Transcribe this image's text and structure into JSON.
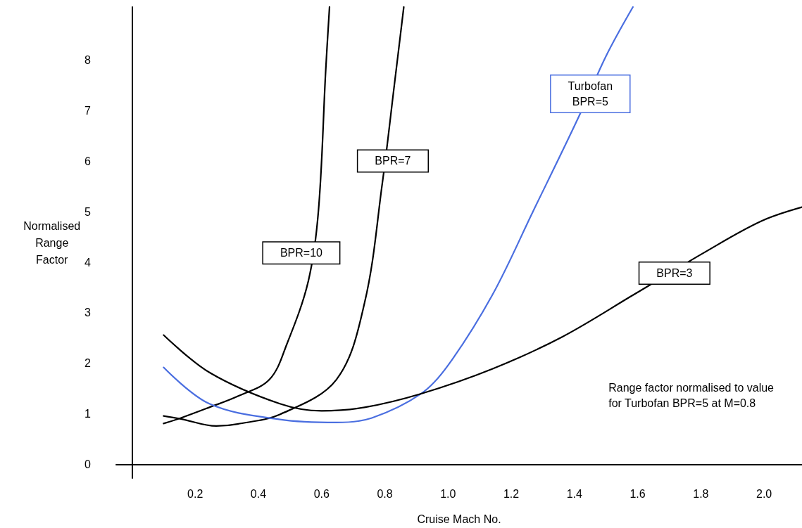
{
  "chart_data": {
    "type": "line",
    "xlabel": "Cruise Mach No.",
    "ylabel": "Normalised\nRange\nFactor",
    "xlim": [
      -0.05,
      2.12
    ],
    "ylim": [
      -0.27,
      9.05
    ],
    "xticks": [
      0.2,
      0.4,
      0.6,
      0.8,
      {
        "value": 1,
        "label": "1.0"
      },
      1.2,
      1.4,
      1.6,
      1.8,
      {
        "value": 2,
        "label": "2.0"
      }
    ],
    "yticks": [
      0,
      1,
      2,
      3,
      4,
      5,
      6,
      7,
      8
    ],
    "grid": false,
    "marker": "none",
    "line_style": "solid",
    "series": [
      {
        "name": "BPR=10",
        "color": "#000000",
        "x": [
          0.1,
          0.155,
          0.245,
          0.335,
          0.435,
          0.49,
          0.558,
          0.59,
          0.613,
          0.625
        ],
        "values": [
          0.81,
          0.92,
          1.13,
          1.35,
          1.68,
          2.38,
          3.63,
          5.02,
          7.8,
          9.05
        ]
      },
      {
        "name": "BPR=7",
        "color": "#000000",
        "x": [
          0.1,
          0.155,
          0.267,
          0.334,
          0.468,
          0.647,
          0.736,
          0.792,
          0.83,
          0.86
        ],
        "values": [
          0.96,
          0.9,
          0.76,
          0.8,
          0.99,
          1.68,
          3.2,
          5.56,
          7.5,
          9.05
        ]
      },
      {
        "name": "Turbofan\nBPR=5",
        "color": "#4a6ee0",
        "x": [
          0.1,
          0.245,
          0.468,
          0.647,
          0.759,
          0.915,
          1.0,
          1.14,
          1.27,
          1.41,
          1.5,
          1.585
        ],
        "values": [
          1.92,
          1.2,
          0.89,
          0.83,
          0.92,
          1.4,
          1.96,
          3.35,
          5.02,
          6.83,
          8.08,
          9.05
        ]
      },
      {
        "name": "BPR=3",
        "color": "#000000",
        "x": [
          0.1,
          0.245,
          0.468,
          0.6,
          0.736,
          0.915,
          1.14,
          1.36,
          1.585,
          1.81,
          1.99,
          2.12
        ],
        "values": [
          2.56,
          1.82,
          1.2,
          1.06,
          1.13,
          1.4,
          1.89,
          2.52,
          3.35,
          4.19,
          4.81,
          5.09
        ]
      }
    ],
    "annotations": [
      "Range factor normalised to value\nfor Turbofan BPR=5 at M=0.8"
    ]
  }
}
